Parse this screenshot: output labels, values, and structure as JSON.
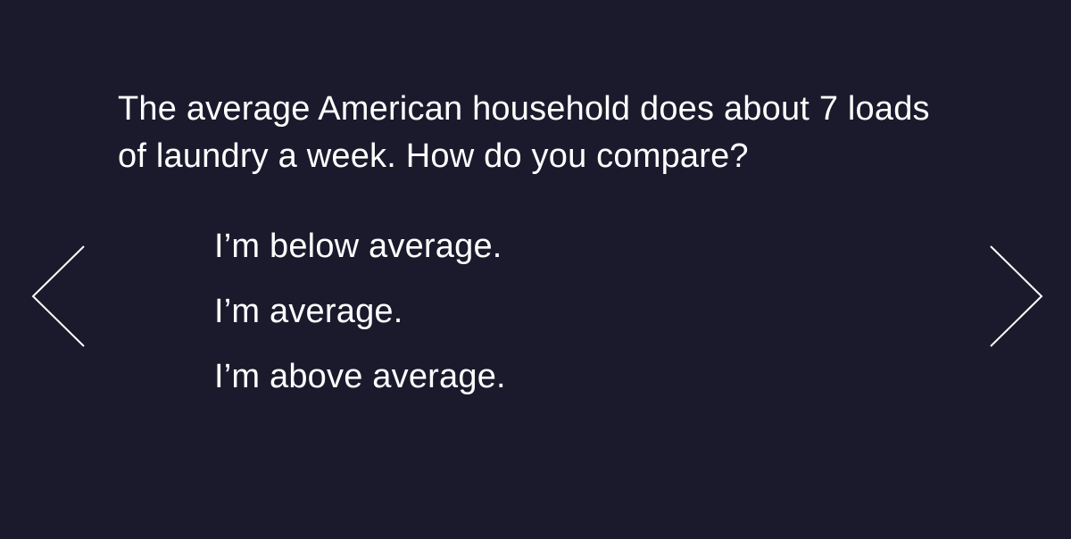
{
  "question": {
    "text": "The average American household does about 7 loads of laundry a week. How do you compare?"
  },
  "options": [
    {
      "label": "I’m below average."
    },
    {
      "label": "I’m average."
    },
    {
      "label": "I’m above average."
    }
  ],
  "navigation": {
    "prev_icon": "chevron-left-icon",
    "next_icon": "chevron-right-icon"
  },
  "colors": {
    "background": "#1b1a2d",
    "text": "#ffffff"
  }
}
